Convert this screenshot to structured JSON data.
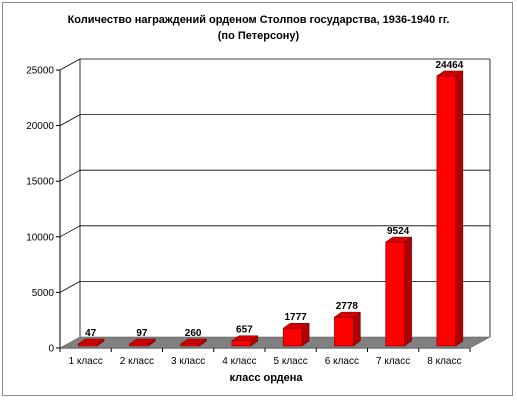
{
  "chart_data": {
    "type": "bar",
    "title": "Количество награждений орденом Столпов государства, 1936-1940 гг.",
    "subtitle": "(по Петерсону)",
    "xlabel": "класс ордена",
    "ylabel": "",
    "categories": [
      "1 класс",
      "2 класс",
      "3 класс",
      "4 класс",
      "5 класс",
      "6 класс",
      "7 класс",
      "8 класс"
    ],
    "values": [
      47,
      97,
      260,
      657,
      1777,
      2778,
      9524,
      24464
    ],
    "ylim": [
      0,
      25000
    ],
    "yticks": [
      0,
      5000,
      10000,
      15000,
      20000,
      25000
    ],
    "grid": true,
    "legend": "none",
    "bar_color": "#ff0000",
    "bar_side_color": "#b00000",
    "bar_top_color": "#d40000",
    "floor_color": "#808080"
  }
}
